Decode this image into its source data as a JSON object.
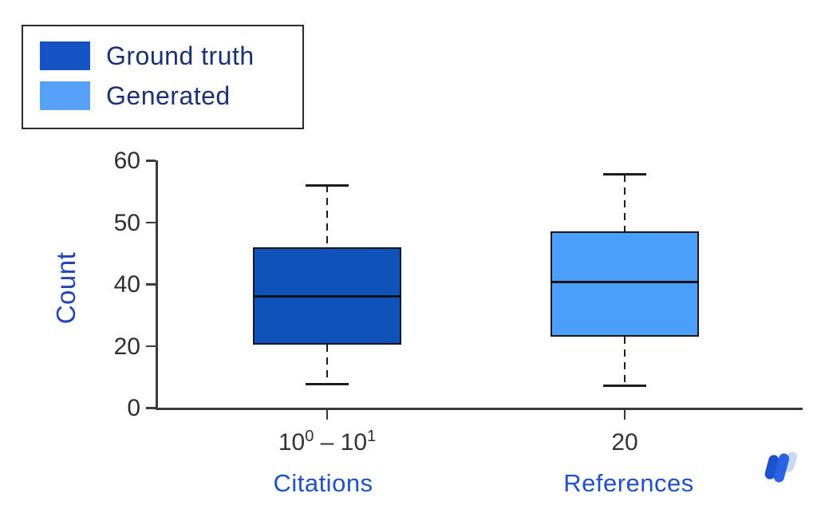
{
  "page": {
    "background": "#ffffff"
  },
  "legend": {
    "items": [
      {
        "label": "Ground truth",
        "color": "#1552c4"
      },
      {
        "label": "Generated",
        "color": "#55a3f9"
      }
    ],
    "text_color": "#1a3173",
    "border_color": "#2b2b2b",
    "position": "top-left"
  },
  "chart_data": {
    "type": "boxplot",
    "title": "",
    "xlabel": "",
    "ylabel": "Count",
    "grid": false,
    "legend_position": "top-left",
    "yticks": {
      "values": [
        0,
        20,
        40,
        50,
        60
      ],
      "labels": [
        "0",
        "20",
        "40",
        "50",
        "60"
      ],
      "note": "tick marks are rendered at equal visual spacing despite non-uniform values"
    },
    "ylim_top_label": "60",
    "categories": [
      {
        "tick_label": "10⁰ – 10¹",
        "tick_label_parts": [
          {
            "text": "10"
          },
          {
            "text": "0",
            "superscript": true
          },
          {
            "text": " – "
          },
          {
            "text": "10"
          },
          {
            "text": "1",
            "superscript": true
          }
        ],
        "axis_label": "Citations"
      },
      {
        "tick_label": "20",
        "axis_label": "References"
      }
    ],
    "series": [
      {
        "name": "Ground truth",
        "fill": "#0f52ba",
        "category_index": 0,
        "whisker_low": 7.5,
        "q1": 20.5,
        "median": 36,
        "q3": 46,
        "whisker_high": 56
      },
      {
        "name": "Generated",
        "fill": "#4c9ffa",
        "category_index": 1,
        "whisker_low": 7,
        "q1": 23,
        "median": 40.3,
        "q3": 48.5,
        "whisker_high": 57.7
      }
    ],
    "axis_label_color": "#2150c8",
    "ylabel_color": "#2343b8",
    "tick_label_color": "#2e2e2e"
  },
  "watermark": {
    "name": "w-mark-logo",
    "colors": {
      "dark": "#1c52cb",
      "bright": "#2a62e4",
      "pale": "#c9d8f7"
    }
  }
}
